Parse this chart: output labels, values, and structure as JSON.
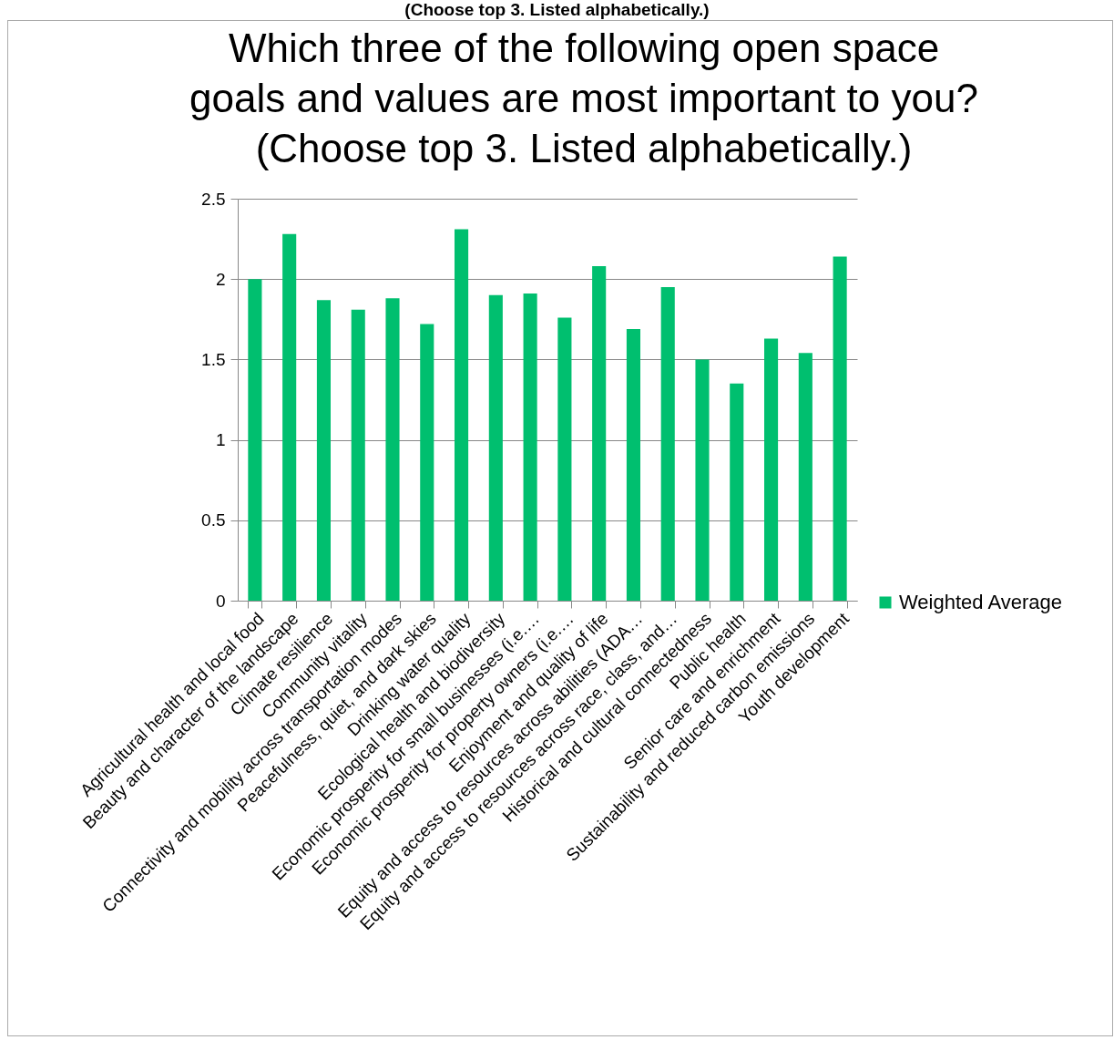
{
  "chart_data": {
    "type": "bar",
    "title": "Which three of the following open space\ngoals and values are most important to you?\n(Choose top 3. Listed alphabetically.)",
    "annotations": [
      "(Choose top 3. Listed alphabetically.)"
    ],
    "categories": [
      "Agricultural health and local food",
      "Beauty and character of the landscape",
      "Climate resilience",
      "Community vitality",
      "Connectivity and mobility across transportation modes",
      "Peacefulness, quiet, and dark skies",
      "Drinking water quality",
      "Ecological health and biodiversity",
      "Economic prosperity for small businesses (i.e.…",
      "Economic prosperity for property owners (i.e.…",
      "Enjoyment and quality of life",
      "Equity and access to resources across abilities (ADA…",
      "Equity and access to resources across race, class, and…",
      "Historical and cultural connectedness",
      "Public health",
      "Senior care and enrichment",
      "Sustainability and reduced carbon emissions",
      "Youth development"
    ],
    "series": [
      {
        "name": "Weighted Average",
        "color": "#00bf6f",
        "values": [
          2.0,
          2.28,
          1.87,
          1.81,
          1.88,
          1.72,
          2.31,
          1.9,
          1.91,
          1.76,
          2.08,
          1.69,
          1.95,
          1.5,
          1.35,
          1.63,
          1.54,
          2.14
        ]
      }
    ],
    "ylim": [
      0,
      2.5
    ],
    "yticks": [
      0,
      0.5,
      1,
      1.5,
      2,
      2.5
    ],
    "grid": "y",
    "legend": "right"
  }
}
